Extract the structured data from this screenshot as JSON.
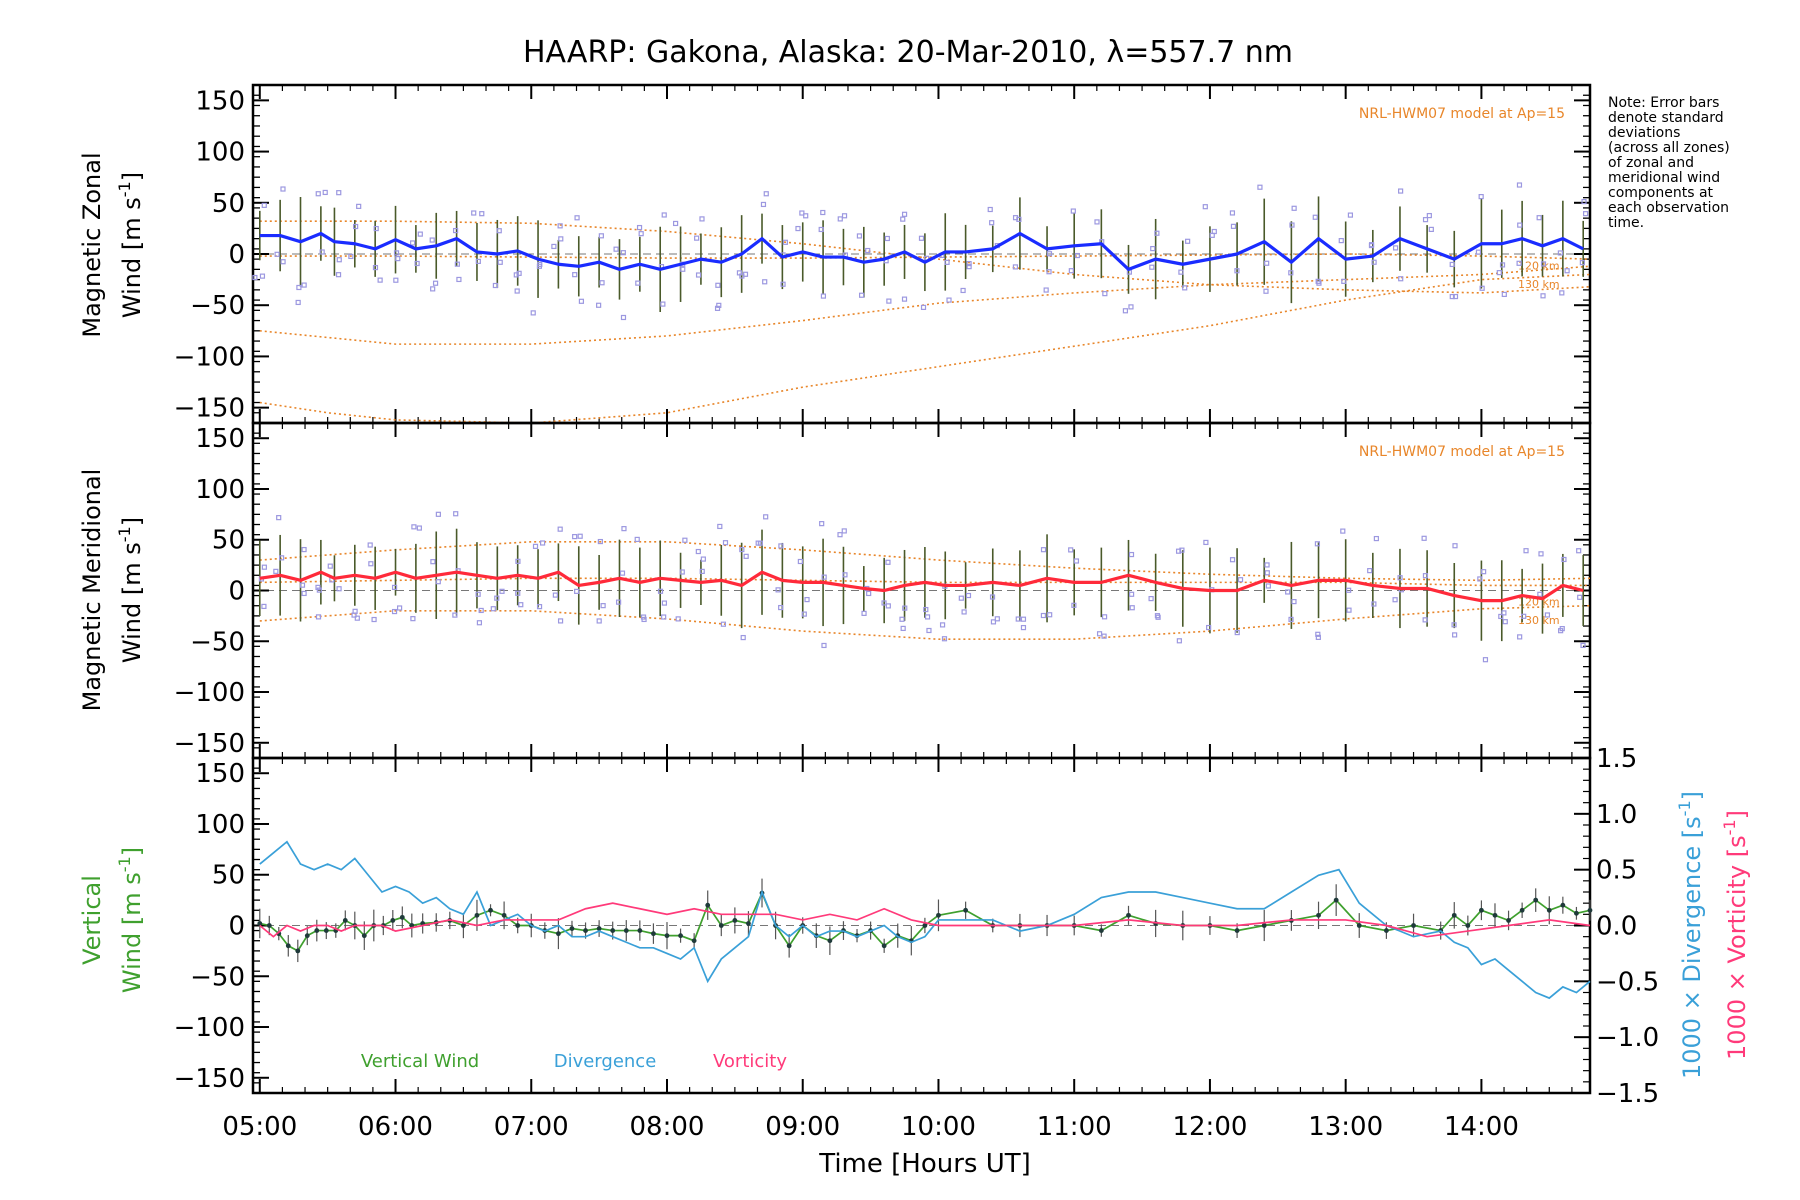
{
  "title": "HAARP: Gakona,  Alaska: 20-Mar-2010, λ=557.7 nm",
  "note": [
    "Note: Error bars",
    "denote standard",
    "deviations",
    "(across all zones)",
    "of zonal and",
    "meridional wind",
    "components at",
    "each observation",
    "time."
  ],
  "colors": {
    "zonal": "#1a2cff",
    "meridional": "#ff2a3a",
    "model": "#e8862a",
    "errbar": "#4a5a2a",
    "scatter": "#9c98e0",
    "vertical": "#3fa02e",
    "divergence": "#3aa0d8",
    "vorticity": "#ff3a7a"
  },
  "chart_data": [
    {
      "type": "line",
      "panel": "zonal",
      "ylabel_line1": "Magnetic Zonal",
      "ylabel_line2": "Wind",
      "ylabel_units": "[m s",
      "ylabel_exp": "-1",
      "ylabel_close": "]",
      "model_label": "NRL-HWM07 model at Ap=15",
      "alt_labels": [
        "120 km",
        "130 km"
      ],
      "ylim": [
        -165,
        165
      ],
      "yticks": [
        150,
        100,
        50,
        0,
        -50,
        -100,
        -150
      ],
      "series": [
        {
          "name": "Magnetic Zonal Wind",
          "x": [
            5.0,
            5.15,
            5.3,
            5.45,
            5.55,
            5.7,
            5.85,
            6.0,
            6.15,
            6.3,
            6.45,
            6.6,
            6.75,
            6.9,
            7.05,
            7.2,
            7.35,
            7.5,
            7.65,
            7.8,
            7.95,
            8.1,
            8.25,
            8.4,
            8.55,
            8.7,
            8.85,
            9.0,
            9.15,
            9.3,
            9.45,
            9.6,
            9.75,
            9.9,
            10.05,
            10.2,
            10.4,
            10.6,
            10.8,
            11.0,
            11.2,
            11.4,
            11.6,
            11.8,
            12.0,
            12.2,
            12.4,
            12.6,
            12.8,
            13.0,
            13.2,
            13.4,
            13.6,
            13.8,
            14.0,
            14.15,
            14.3,
            14.45,
            14.6,
            14.75
          ],
          "y": [
            18,
            18,
            12,
            20,
            12,
            10,
            5,
            14,
            5,
            8,
            15,
            2,
            0,
            3,
            -5,
            -10,
            -12,
            -8,
            -15,
            -10,
            -15,
            -10,
            -5,
            -8,
            0,
            15,
            -3,
            2,
            -3,
            -3,
            -8,
            -5,
            2,
            -8,
            2,
            2,
            5,
            20,
            5,
            8,
            10,
            -15,
            -5,
            -10,
            -5,
            0,
            12,
            -8,
            15,
            -5,
            -2,
            15,
            5,
            -5,
            10,
            10,
            15,
            8,
            15,
            5
          ]
        }
      ],
      "model_curves": [
        {
          "name": "model-upper",
          "x": [
            5.0,
            6.0,
            7.0,
            8.0,
            9.0,
            10.0,
            11.0,
            12.0,
            13.0,
            14.0,
            14.8
          ],
          "y": [
            32,
            32,
            30,
            22,
            10,
            -5,
            -20,
            -30,
            -35,
            -38,
            -32
          ]
        },
        {
          "name": "model-lower-a",
          "x": [
            5.0,
            6.0,
            7.0,
            8.0,
            9.0,
            10.0,
            11.0,
            12.0,
            13.0,
            14.0,
            14.8
          ],
          "y": [
            -75,
            -88,
            -88,
            -80,
            -65,
            -48,
            -38,
            -30,
            -25,
            -20,
            -12
          ]
        },
        {
          "name": "model-lower-b",
          "x": [
            5.0,
            5.5,
            6.0,
            7.0,
            8.0,
            9.0,
            10.0,
            11.0,
            12.0,
            13.0,
            14.0,
            14.8
          ],
          "y": [
            -145,
            -155,
            -162,
            -165,
            -155,
            -130,
            -110,
            -90,
            -70,
            -45,
            -25,
            -20
          ]
        },
        {
          "name": "model-mid",
          "x": [
            5.0,
            6.0,
            7.0,
            8.0,
            9.0,
            10.0,
            11.0,
            12.0,
            13.0,
            14.0,
            14.8
          ],
          "y": [
            -2,
            -2,
            -3,
            -4,
            -4,
            -3,
            -2,
            -1,
            0,
            -2,
            -5
          ]
        }
      ]
    },
    {
      "type": "line",
      "panel": "meridional",
      "ylabel_line1": "Magnetic Meridional",
      "ylabel_line2": "Wind",
      "ylabel_units": "[m s",
      "ylabel_exp": "-1",
      "ylabel_close": "]",
      "model_label": "NRL-HWM07 model at Ap=15",
      "alt_labels": [
        "120 km",
        "130 km"
      ],
      "ylim": [
        -165,
        165
      ],
      "yticks": [
        150,
        100,
        50,
        0,
        -50,
        -100,
        -150
      ],
      "series": [
        {
          "name": "Magnetic Meridional Wind",
          "x": [
            5.0,
            5.15,
            5.3,
            5.45,
            5.55,
            5.7,
            5.85,
            6.0,
            6.15,
            6.3,
            6.45,
            6.6,
            6.75,
            6.9,
            7.05,
            7.2,
            7.35,
            7.5,
            7.65,
            7.8,
            7.95,
            8.1,
            8.25,
            8.4,
            8.55,
            8.7,
            8.85,
            9.0,
            9.15,
            9.3,
            9.45,
            9.6,
            9.75,
            9.9,
            10.05,
            10.2,
            10.4,
            10.6,
            10.8,
            11.0,
            11.2,
            11.4,
            11.6,
            11.8,
            12.0,
            12.2,
            12.4,
            12.6,
            12.8,
            13.0,
            13.2,
            13.4,
            13.6,
            13.8,
            14.0,
            14.15,
            14.3,
            14.45,
            14.6,
            14.75
          ],
          "y": [
            12,
            15,
            10,
            18,
            12,
            15,
            12,
            18,
            12,
            15,
            18,
            15,
            12,
            15,
            12,
            18,
            5,
            8,
            12,
            8,
            12,
            10,
            8,
            10,
            5,
            18,
            10,
            8,
            8,
            5,
            2,
            0,
            5,
            8,
            5,
            5,
            8,
            5,
            12,
            8,
            8,
            15,
            8,
            2,
            0,
            0,
            10,
            5,
            10,
            10,
            5,
            2,
            2,
            -5,
            -10,
            -10,
            -5,
            -8,
            5,
            0
          ]
        }
      ],
      "model_curves": [
        {
          "name": "model-upper",
          "x": [
            5.0,
            6.0,
            7.0,
            8.0,
            9.0,
            10.0,
            11.0,
            12.0,
            13.0,
            14.0,
            14.8
          ],
          "y": [
            30,
            40,
            48,
            48,
            40,
            30,
            22,
            16,
            12,
            10,
            12
          ]
        },
        {
          "name": "model-lower",
          "x": [
            5.0,
            6.0,
            7.0,
            8.0,
            9.0,
            10.0,
            11.0,
            12.0,
            13.0,
            14.0,
            14.8
          ],
          "y": [
            -30,
            -20,
            -20,
            -28,
            -40,
            -48,
            -48,
            -40,
            -28,
            -18,
            -15
          ]
        },
        {
          "name": "model-mid",
          "x": [
            5.0,
            6.0,
            7.0,
            8.0,
            9.0,
            10.0,
            11.0,
            12.0,
            13.0,
            14.0,
            14.8
          ],
          "y": [
            8,
            10,
            12,
            12,
            10,
            8,
            8,
            8,
            8,
            5,
            5
          ]
        }
      ]
    },
    {
      "type": "line",
      "panel": "vertical",
      "ylabel_line1": "Vertical",
      "ylabel_line2": "Wind",
      "ylabel_units": "[m s",
      "ylabel_exp": "-1",
      "ylabel_close": "]",
      "ylim": [
        -165,
        165
      ],
      "yticks": [
        150,
        100,
        50,
        0,
        -50,
        -100,
        -150
      ],
      "y2_label_div": "1000 × Divergence",
      "y2_label_vort": "1000 × Vorticity",
      "y2_units": "[s",
      "y2_exp": "-1",
      "y2_close": "]",
      "y2lim": [
        -1.5,
        1.5
      ],
      "y2ticks": [
        "1.5",
        "1.0",
        "0.5",
        "0.0",
        "-0.5",
        "-1.0",
        "-1.5"
      ],
      "y2tickvals": [
        1.5,
        1.0,
        0.5,
        0.0,
        -0.5,
        -1.0,
        -1.5
      ],
      "legend": [
        "Vertical Wind",
        "Divergence",
        "Vorticity"
      ],
      "series": [
        {
          "name": "Vertical Wind",
          "axis": "left",
          "x": [
            5.0,
            5.07,
            5.14,
            5.21,
            5.28,
            5.35,
            5.42,
            5.49,
            5.56,
            5.63,
            5.7,
            5.77,
            5.84,
            5.91,
            5.98,
            6.05,
            6.12,
            6.2,
            6.3,
            6.4,
            6.5,
            6.6,
            6.7,
            6.8,
            6.9,
            7.0,
            7.1,
            7.2,
            7.3,
            7.4,
            7.5,
            7.6,
            7.7,
            7.8,
            7.9,
            8.0,
            8.1,
            8.2,
            8.3,
            8.4,
            8.5,
            8.6,
            8.7,
            8.8,
            8.9,
            9.0,
            9.1,
            9.2,
            9.3,
            9.4,
            9.5,
            9.6,
            9.7,
            9.8,
            9.9,
            10.0,
            10.2,
            10.4,
            10.6,
            10.8,
            11.0,
            11.2,
            11.4,
            11.6,
            11.8,
            12.0,
            12.2,
            12.4,
            12.6,
            12.8,
            12.93,
            13.1,
            13.3,
            13.5,
            13.7,
            13.8,
            13.9,
            14.0,
            14.1,
            14.2,
            14.3,
            14.4,
            14.5,
            14.6,
            14.7,
            14.8
          ],
          "y": [
            2,
            0,
            -8,
            -20,
            -25,
            -10,
            -5,
            -5,
            -5,
            5,
            0,
            -10,
            0,
            0,
            5,
            8,
            0,
            2,
            3,
            5,
            0,
            10,
            15,
            10,
            0,
            0,
            -5,
            -8,
            -3,
            -5,
            -3,
            -5,
            -5,
            -5,
            -8,
            -10,
            -10,
            -15,
            20,
            0,
            5,
            2,
            32,
            0,
            -20,
            0,
            -10,
            -15,
            -5,
            -10,
            -5,
            -20,
            -10,
            -15,
            0,
            10,
            15,
            0,
            0,
            0,
            0,
            -5,
            10,
            2,
            0,
            0,
            -5,
            0,
            5,
            10,
            25,
            0,
            -5,
            0,
            -5,
            10,
            0,
            15,
            10,
            5,
            15,
            25,
            15,
            20,
            12,
            15
          ]
        },
        {
          "name": "Divergence",
          "axis": "right",
          "x": [
            5.0,
            5.1,
            5.2,
            5.3,
            5.4,
            5.5,
            5.6,
            5.7,
            5.8,
            5.9,
            6.0,
            6.1,
            6.2,
            6.3,
            6.4,
            6.5,
            6.6,
            6.7,
            6.8,
            6.9,
            7.0,
            7.1,
            7.2,
            7.3,
            7.4,
            7.5,
            7.6,
            7.7,
            7.8,
            7.9,
            8.0,
            8.1,
            8.2,
            8.3,
            8.4,
            8.5,
            8.6,
            8.7,
            8.8,
            8.9,
            9.0,
            9.1,
            9.2,
            9.3,
            9.4,
            9.5,
            9.6,
            9.7,
            9.8,
            9.9,
            10.0,
            10.2,
            10.4,
            10.6,
            10.8,
            11.0,
            11.2,
            11.4,
            11.6,
            11.8,
            12.0,
            12.2,
            12.4,
            12.6,
            12.8,
            12.95,
            13.1,
            13.3,
            13.5,
            13.7,
            13.8,
            13.9,
            14.0,
            14.1,
            14.2,
            14.3,
            14.4,
            14.5,
            14.6,
            14.7,
            14.8
          ],
          "y": [
            0.55,
            0.65,
            0.75,
            0.55,
            0.5,
            0.55,
            0.5,
            0.6,
            0.45,
            0.3,
            0.35,
            0.3,
            0.2,
            0.25,
            0.15,
            0.1,
            0.3,
            0.0,
            0.05,
            0.1,
            0.0,
            -0.05,
            0.0,
            -0.1,
            -0.1,
            -0.05,
            -0.1,
            -0.15,
            -0.2,
            -0.2,
            -0.25,
            -0.3,
            -0.2,
            -0.5,
            -0.3,
            -0.2,
            -0.1,
            0.3,
            0.0,
            -0.1,
            0.0,
            -0.1,
            -0.05,
            -0.05,
            -0.1,
            -0.05,
            0.0,
            -0.1,
            -0.15,
            -0.1,
            0.05,
            0.05,
            0.05,
            -0.05,
            0.0,
            0.1,
            0.25,
            0.3,
            0.3,
            0.25,
            0.2,
            0.15,
            0.15,
            0.3,
            0.45,
            0.5,
            0.2,
            0.0,
            -0.1,
            -0.05,
            -0.15,
            -0.2,
            -0.35,
            -0.3,
            -0.4,
            -0.5,
            -0.6,
            -0.65,
            -0.55,
            -0.6,
            -0.5
          ]
        },
        {
          "name": "Vorticity",
          "axis": "right",
          "x": [
            5.0,
            5.1,
            5.2,
            5.3,
            5.4,
            5.5,
            5.6,
            5.7,
            5.8,
            5.9,
            6.0,
            6.2,
            6.4,
            6.6,
            6.8,
            7.0,
            7.2,
            7.4,
            7.6,
            7.8,
            8.0,
            8.2,
            8.4,
            8.6,
            8.8,
            9.0,
            9.2,
            9.4,
            9.6,
            9.8,
            10.0,
            10.3,
            10.6,
            11.0,
            11.4,
            11.8,
            12.2,
            12.6,
            13.0,
            13.3,
            13.6,
            13.9,
            14.2,
            14.5,
            14.8
          ],
          "y": [
            0.0,
            -0.1,
            0.0,
            -0.05,
            0.0,
            0.0,
            -0.05,
            0.0,
            0.0,
            0.0,
            -0.05,
            0.0,
            0.05,
            0.0,
            0.05,
            0.05,
            0.05,
            0.15,
            0.2,
            0.15,
            0.1,
            0.15,
            0.1,
            0.1,
            0.1,
            0.05,
            0.1,
            0.05,
            0.15,
            0.05,
            0.0,
            0.0,
            0.0,
            0.0,
            0.05,
            0.0,
            0.0,
            0.05,
            0.05,
            0.0,
            -0.1,
            -0.05,
            0.0,
            0.05,
            0.0
          ]
        }
      ]
    }
  ],
  "x_axis": {
    "label": "Time [Hours UT]",
    "xlim": [
      4.95,
      14.8
    ],
    "ticks": [
      5,
      6,
      7,
      8,
      9,
      10,
      11,
      12,
      13,
      14
    ],
    "tick_labels": [
      "05:00",
      "06:00",
      "07:00",
      "08:00",
      "09:00",
      "10:00",
      "11:00",
      "12:00",
      "13:00",
      "14:00"
    ]
  }
}
